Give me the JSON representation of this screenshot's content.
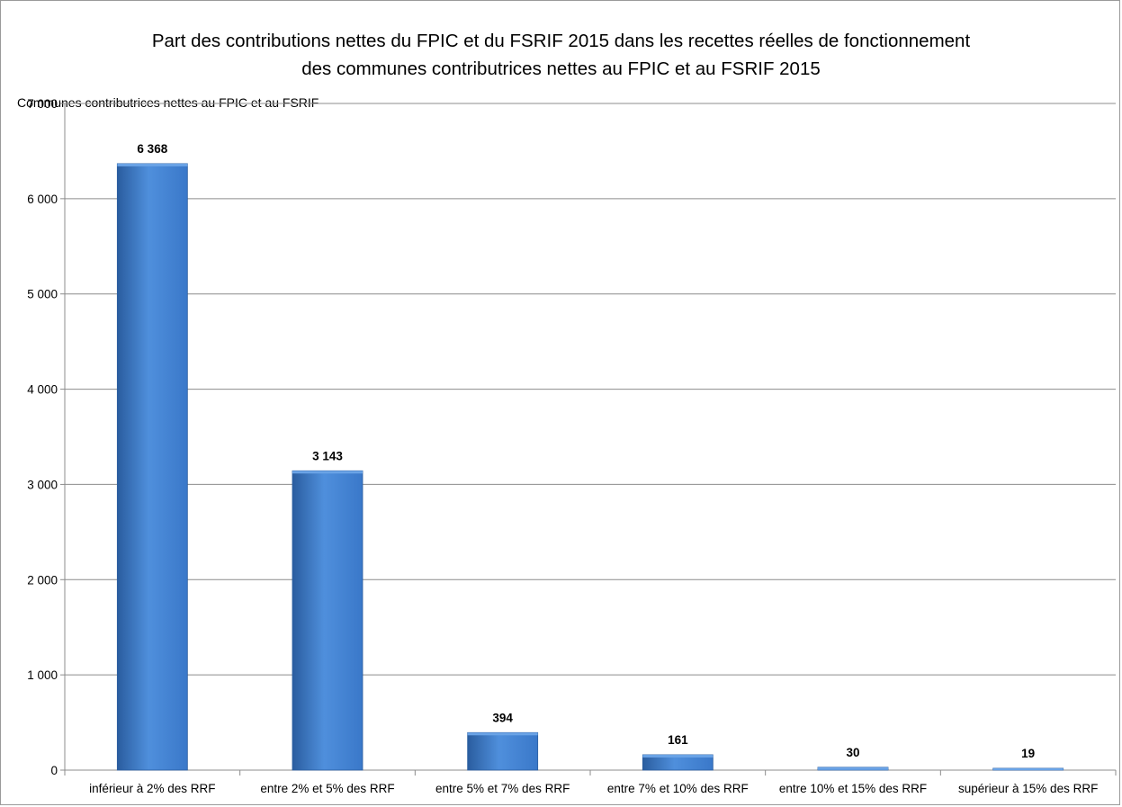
{
  "chart_data": {
    "type": "bar",
    "title_lines": [
      "Part des contributions nettes du FPIC et du FSRIF 2015 dans les recettes réelles de fonctionnement",
      "des communes contributrices nettes au FPIC et au FSRIF 2015"
    ],
    "ylabel": "Communes contributrices nettes au FPIC et au FSRIF",
    "xlabel": "",
    "categories": [
      "inférieur à 2% des RRF",
      "entre 2% et 5% des RRF",
      "entre 5% et 7% des RRF",
      "entre 7% et 10% des RRF",
      "entre 10% et 15% des RRF",
      "supérieur à 15% des RRF"
    ],
    "values": [
      6368,
      3143,
      394,
      161,
      30,
      19
    ],
    "value_labels": [
      "6 368",
      "3 143",
      "394",
      "161",
      "30",
      "19"
    ],
    "ylim": [
      0,
      7000
    ],
    "yticks": [
      0,
      1000,
      2000,
      3000,
      4000,
      5000,
      6000,
      7000
    ],
    "ytick_labels": [
      "0",
      "1 000",
      "2 000",
      "3 000",
      "4 000",
      "5 000",
      "6 000",
      "7 000"
    ],
    "grid": true,
    "legend": "none",
    "colors": {
      "bar_light": "#4f8fdc",
      "bar_mid": "#3a78c9",
      "bar_dark": "#2a5d9f",
      "gridline": "#8c8c8c",
      "axis": "#8c8c8c"
    }
  }
}
